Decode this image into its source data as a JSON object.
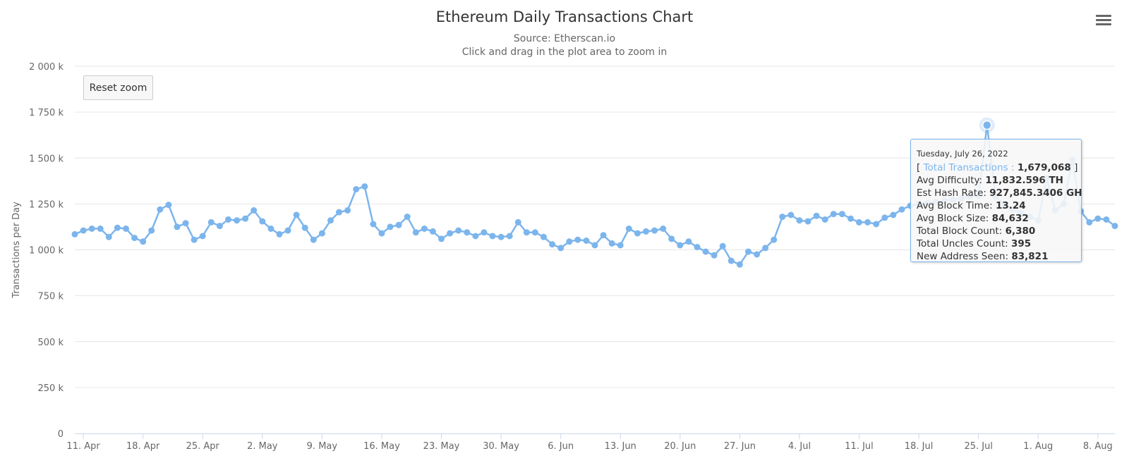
{
  "title": "Ethereum Daily Transactions Chart",
  "subtitle_source": "Source: Etherscan.io",
  "subtitle_hint": "Click and drag in the plot area to zoom in",
  "reset_zoom_label": "Reset zoom",
  "menu_icon": "hamburger-menu-icon",
  "colors": {
    "series": "#7cb5ec",
    "grid": "#e6e6e6",
    "axis_text": "#666666"
  },
  "tooltip": {
    "date": "Tuesday, July 26, 2022",
    "bracket_open": "[",
    "series_label": "Total Transactions :",
    "series_value": "1,679,068",
    "bracket_close": "]",
    "rows": [
      {
        "label": "Avg Difficulty:",
        "value": "11,832.596 TH"
      },
      {
        "label": "Est Hash Rate:",
        "value": "927,845.3406 GH"
      },
      {
        "label": "Avg Block Time:",
        "value": "13.24"
      },
      {
        "label": "Avg Block Size:",
        "value": "84,632"
      },
      {
        "label": "Total Block Count:",
        "value": "6,380"
      },
      {
        "label": "Total Uncles Count:",
        "value": "395"
      },
      {
        "label": "New Address Seen:",
        "value": "83,821"
      }
    ]
  },
  "chart_data": {
    "type": "line",
    "title": "Ethereum Daily Transactions Chart",
    "ylabel": "Transactions per Day",
    "xlabel": "",
    "ylim": [
      0,
      2000000
    ],
    "y_tick_values": [
      0,
      250000,
      500000,
      750000,
      1000000,
      1250000,
      1500000,
      1750000,
      2000000
    ],
    "y_tick_labels": [
      "0",
      "250 k",
      "500 k",
      "750 k",
      "1 000 k",
      "1 250 k",
      "1 500 k",
      "1 750 k",
      "2 000 k"
    ],
    "x_ticks": [
      {
        "date": "2022-04-11",
        "label": "11. Apr"
      },
      {
        "date": "2022-04-18",
        "label": "18. Apr"
      },
      {
        "date": "2022-04-25",
        "label": "25. Apr"
      },
      {
        "date": "2022-05-02",
        "label": "2. May"
      },
      {
        "date": "2022-05-09",
        "label": "9. May"
      },
      {
        "date": "2022-05-16",
        "label": "16. May"
      },
      {
        "date": "2022-05-23",
        "label": "23. May"
      },
      {
        "date": "2022-05-30",
        "label": "30. May"
      },
      {
        "date": "2022-06-06",
        "label": "6. Jun"
      },
      {
        "date": "2022-06-13",
        "label": "13. Jun"
      },
      {
        "date": "2022-06-20",
        "label": "20. Jun"
      },
      {
        "date": "2022-06-27",
        "label": "27. Jun"
      },
      {
        "date": "2022-07-04",
        "label": "4. Jul"
      },
      {
        "date": "2022-07-11",
        "label": "11. Jul"
      },
      {
        "date": "2022-07-18",
        "label": "18. Jul"
      },
      {
        "date": "2022-07-25",
        "label": "25. Jul"
      },
      {
        "date": "2022-08-01",
        "label": "1. Aug"
      },
      {
        "date": "2022-08-08",
        "label": "8. Aug"
      }
    ],
    "x_range": [
      "2022-04-10",
      "2022-08-10"
    ],
    "grid": true,
    "legend": "none",
    "highlighted_point": {
      "date": "2022-07-26",
      "value": 1679068
    },
    "series": [
      {
        "start_date": "2022-04-10",
        "values": [
          1085000,
          1105000,
          1115000,
          1115000,
          1070000,
          1120000,
          1115000,
          1065000,
          1045000,
          1105000,
          1220000,
          1245000,
          1125000,
          1145000,
          1055000,
          1075000,
          1150000,
          1130000,
          1165000,
          1160000,
          1170000,
          1215000,
          1155000,
          1115000,
          1085000,
          1105000,
          1190000,
          1120000,
          1055000,
          1090000,
          1160000,
          1205000,
          1215000,
          1330000,
          1345000,
          1140000,
          1090000,
          1125000,
          1135000,
          1180000,
          1095000,
          1115000,
          1100000,
          1060000,
          1090000,
          1105000,
          1095000,
          1075000,
          1095000,
          1075000,
          1070000,
          1075000,
          1150000,
          1095000,
          1095000,
          1070000,
          1030000,
          1010000,
          1045000,
          1055000,
          1050000,
          1025000,
          1080000,
          1035000,
          1025000,
          1115000,
          1090000,
          1100000,
          1105000,
          1115000,
          1060000,
          1025000,
          1045000,
          1015000,
          990000,
          970000,
          1020000,
          940000,
          920000,
          990000,
          975000,
          1010000,
          1055000,
          1180000,
          1190000,
          1160000,
          1155000,
          1185000,
          1165000,
          1195000,
          1195000,
          1170000,
          1150000,
          1150000,
          1140000,
          1175000,
          1190000,
          1220000,
          1240000,
          1250000,
          1255000,
          1260000,
          1270000,
          1275000,
          1280000,
          1290000,
          1295000,
          1679068,
          1290000,
          1250000,
          1220000,
          1200000,
          1180000,
          1160000,
          1390000,
          1215000,
          1250000,
          1490000,
          1210000,
          1150000,
          1170000,
          1165000,
          1130000
        ]
      }
    ]
  }
}
